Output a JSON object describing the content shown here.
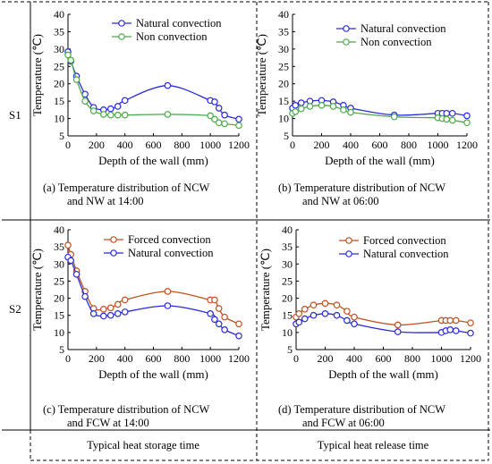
{
  "row_labels": [
    "S1",
    "S2"
  ],
  "captions": [
    {
      "line1": "(a)  Temperature distribution of NCW",
      "line2": "and NW at 14:00"
    },
    {
      "line1": "(b)  Temperature distribution of NCW",
      "line2": "and NW at 06:00"
    },
    {
      "line1": "(c)  Temperature distribution of NCW",
      "line2": "and FCW at 14:00"
    },
    {
      "line1": "(d)  Temperature distribution of NCW",
      "line2": "and FCW at 06:00"
    }
  ],
  "footer": {
    "left": "Typical heat storage time",
    "right": "Typical heat release time"
  },
  "colors": {
    "blue": "#2a2ad8",
    "green": "#4aaa4a",
    "red": "#c0501e"
  },
  "chart_data": [
    {
      "type": "line",
      "xlabel": "Depth of the wall (mm)",
      "ylabel": "Temperature (℃)",
      "xlim": [
        0,
        1200
      ],
      "ylim": [
        5,
        40
      ],
      "xticks": [
        0,
        200,
        400,
        600,
        800,
        1000,
        1200
      ],
      "yticks": [
        5,
        10,
        15,
        20,
        25,
        30,
        35,
        40
      ],
      "legend": "top-right",
      "grid": false,
      "series": [
        {
          "name": "Natural convection",
          "color": "#2a2ad8",
          "x": [
            0,
            20,
            60,
            120,
            180,
            250,
            300,
            350,
            400,
            700,
            1000,
            1030,
            1060,
            1100,
            1200
          ],
          "y": [
            29.2,
            26.5,
            22.2,
            17,
            13.2,
            12.5,
            12.8,
            13.5,
            15.2,
            19.5,
            15.2,
            14.8,
            13,
            11,
            9.8
          ]
        },
        {
          "name": "Non convection",
          "color": "#4aaa4a",
          "x": [
            0,
            20,
            60,
            120,
            180,
            250,
            300,
            350,
            400,
            700,
            1000,
            1030,
            1060,
            1100,
            1200
          ],
          "y": [
            28.3,
            26.8,
            21.2,
            15,
            12.2,
            11.2,
            11,
            11,
            11,
            11.2,
            10.8,
            9.8,
            8.8,
            8.5,
            8
          ]
        }
      ]
    },
    {
      "type": "line",
      "xlabel": "Depth of the wall (mm)",
      "ylabel": "Temperature (℃)",
      "xlim": [
        0,
        1200
      ],
      "ylim": [
        5,
        40
      ],
      "xticks": [
        0,
        200,
        400,
        600,
        800,
        1000,
        1200
      ],
      "yticks": [
        5,
        10,
        15,
        20,
        25,
        30,
        35,
        40
      ],
      "legend": "top-right",
      "grid": false,
      "series": [
        {
          "name": "Natural convection",
          "color": "#2a2ad8",
          "x": [
            0,
            20,
            60,
            120,
            200,
            280,
            350,
            400,
            700,
            1000,
            1030,
            1060,
            1100,
            1200
          ],
          "y": [
            13,
            13.8,
            14.5,
            15,
            15.2,
            14.8,
            13.8,
            13,
            11,
            11.5,
            11.5,
            11.5,
            11.5,
            10.8
          ]
        },
        {
          "name": "Non convection",
          "color": "#4aaa4a",
          "x": [
            0,
            20,
            60,
            120,
            200,
            280,
            350,
            400,
            700,
            1000,
            1030,
            1060,
            1100,
            1200
          ],
          "y": [
            11.5,
            12,
            12.8,
            13.5,
            13.8,
            13.5,
            12.5,
            11.8,
            10.5,
            10.2,
            10,
            9.8,
            9.5,
            8.8
          ]
        }
      ]
    },
    {
      "type": "line",
      "xlabel": "Depth of the wall (mm)",
      "ylabel": "Temperature (℃)",
      "xlim": [
        0,
        1200
      ],
      "ylim": [
        5,
        40
      ],
      "xticks": [
        0,
        200,
        400,
        600,
        800,
        1000,
        1200
      ],
      "yticks": [
        5,
        10,
        15,
        20,
        25,
        30,
        35,
        40
      ],
      "legend": "top-right",
      "grid": false,
      "series": [
        {
          "name": "Forced convection",
          "color": "#c0501e",
          "x": [
            0,
            20,
            60,
            120,
            180,
            250,
            300,
            350,
            400,
            700,
            1000,
            1030,
            1060,
            1100,
            1200
          ],
          "y": [
            35.5,
            32.8,
            28,
            22,
            17,
            16.8,
            17.2,
            18.2,
            19.5,
            22,
            19.5,
            19.5,
            17,
            14.5,
            12.5
          ]
        },
        {
          "name": "Natural convection",
          "color": "#2a2ad8",
          "x": [
            0,
            20,
            60,
            120,
            180,
            250,
            300,
            350,
            400,
            700,
            1000,
            1030,
            1060,
            1100,
            1200
          ],
          "y": [
            32,
            31,
            27,
            20.5,
            15.5,
            14.8,
            15,
            15.5,
            16,
            17.8,
            15.5,
            13.8,
            12.5,
            10.8,
            9
          ]
        }
      ]
    },
    {
      "type": "line",
      "xlabel": "Depth of the wall (mm)",
      "ylabel": "Temperature (℃)",
      "xlim": [
        0,
        1200
      ],
      "ylim": [
        5,
        40
      ],
      "xticks": [
        0,
        200,
        400,
        600,
        800,
        1000,
        1200
      ],
      "yticks": [
        5,
        10,
        15,
        20,
        25,
        30,
        35,
        40
      ],
      "legend": "top-right",
      "grid": false,
      "series": [
        {
          "name": "Forced convection",
          "color": "#c0501e",
          "x": [
            0,
            20,
            60,
            120,
            200,
            280,
            350,
            400,
            700,
            1000,
            1030,
            1060,
            1100,
            1200
          ],
          "y": [
            14.5,
            15.5,
            16.8,
            18,
            18.5,
            18,
            16.2,
            14.5,
            12.2,
            13.5,
            13.5,
            13.5,
            13.5,
            12.8
          ]
        },
        {
          "name": "Natural convection",
          "color": "#2a2ad8",
          "x": [
            0,
            20,
            60,
            120,
            200,
            280,
            350,
            400,
            700,
            1000,
            1030,
            1060,
            1100,
            1200
          ],
          "y": [
            12.5,
            13,
            14,
            15,
            15.5,
            15,
            13.5,
            12.5,
            10.2,
            10,
            10.5,
            10.8,
            10.5,
            9.8
          ]
        }
      ]
    }
  ]
}
